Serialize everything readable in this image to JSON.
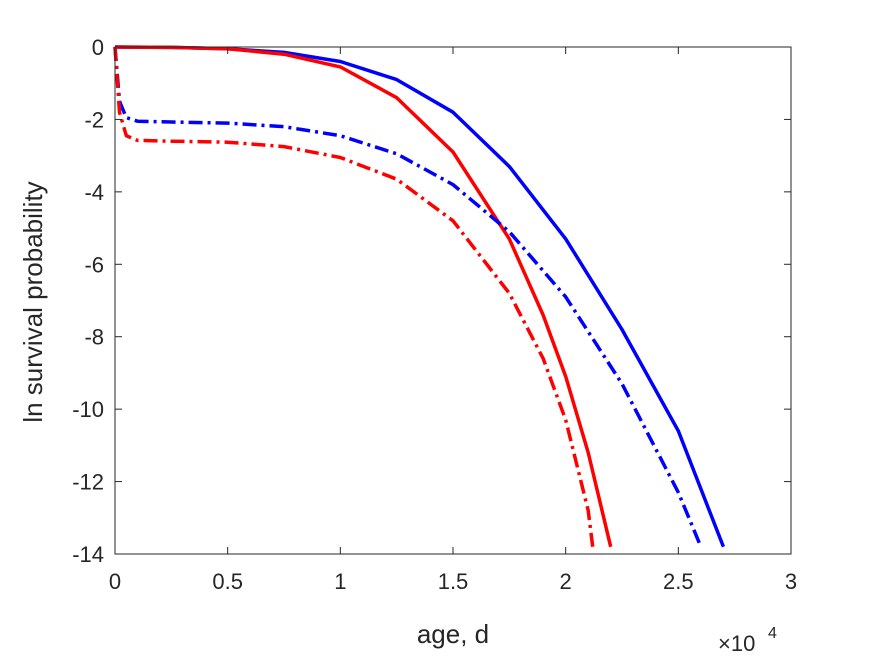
{
  "chart_data": {
    "type": "line",
    "xlabel": "age, d",
    "ylabel": "ln survival probability",
    "x_exponent_label": "×10",
    "x_exponent_power": "4",
    "xlim": [
      0,
      3
    ],
    "ylim": [
      -14,
      0
    ],
    "x_ticks": [
      "0",
      "0.5",
      "1",
      "1.5",
      "2",
      "2.5",
      "3"
    ],
    "y_ticks": [
      "0",
      "-2",
      "-4",
      "-6",
      "-8",
      "-10",
      "-12",
      "-14"
    ],
    "x_tick_values": [
      0,
      0.5,
      1,
      1.5,
      2,
      2.5,
      3
    ],
    "y_tick_values": [
      0,
      -2,
      -4,
      -6,
      -8,
      -10,
      -12,
      -14
    ],
    "grid": false,
    "series": [
      {
        "color": "#0000ff",
        "style": "solid",
        "x": [
          0,
          0.25,
          0.5,
          0.75,
          1.0,
          1.25,
          1.5,
          1.75,
          2.0,
          2.25,
          2.5,
          2.7
        ],
        "y": [
          0,
          -0.01,
          -0.05,
          -0.15,
          -0.4,
          -0.9,
          -1.8,
          -3.3,
          -5.3,
          -7.8,
          -10.6,
          -13.8
        ]
      },
      {
        "color": "#ff0000",
        "style": "solid",
        "x": [
          0,
          0.25,
          0.5,
          0.75,
          1.0,
          1.25,
          1.5,
          1.75,
          1.9,
          2.0,
          2.1,
          2.2
        ],
        "y": [
          0,
          -0.01,
          -0.05,
          -0.2,
          -0.55,
          -1.4,
          -2.9,
          -5.3,
          -7.4,
          -9.1,
          -11.2,
          -13.8
        ]
      },
      {
        "color": "#0000ff",
        "style": "dashdot",
        "x": [
          0,
          0.02,
          0.05,
          0.1,
          0.25,
          0.5,
          0.75,
          1.0,
          1.25,
          1.5,
          1.75,
          2.0,
          2.25,
          2.5,
          2.6
        ],
        "y": [
          0,
          -1.5,
          -1.95,
          -2.05,
          -2.07,
          -2.1,
          -2.2,
          -2.45,
          -2.95,
          -3.8,
          -5.1,
          -6.9,
          -9.3,
          -12.3,
          -13.8
        ]
      },
      {
        "color": "#ff0000",
        "style": "dashdot",
        "x": [
          0,
          0.02,
          0.05,
          0.1,
          0.25,
          0.5,
          0.75,
          1.0,
          1.25,
          1.5,
          1.75,
          1.9,
          2.0,
          2.1,
          2.12
        ],
        "y": [
          0,
          -1.8,
          -2.45,
          -2.58,
          -2.6,
          -2.63,
          -2.75,
          -3.05,
          -3.65,
          -4.8,
          -6.8,
          -8.6,
          -10.3,
          -12.8,
          -13.8
        ]
      }
    ]
  }
}
